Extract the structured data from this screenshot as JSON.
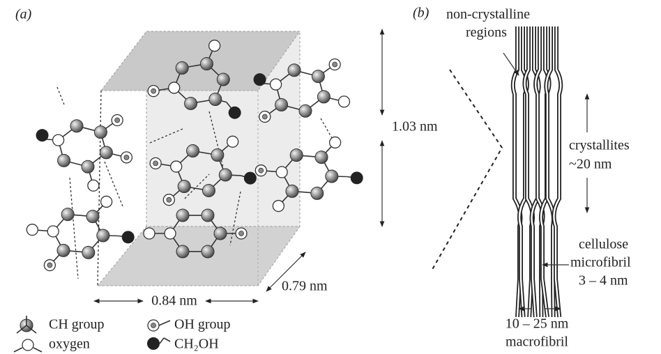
{
  "panels": {
    "a": {
      "label": "(a)",
      "dimensions": {
        "height": "1.03 nm",
        "width": "0.84 nm",
        "depth": "0.79 nm"
      },
      "legend": [
        {
          "label": "CH group"
        },
        {
          "label": "OH group"
        },
        {
          "label": "oxygen"
        },
        {
          "label": "CH₂OH"
        }
      ]
    },
    "b": {
      "label": "(b)",
      "annotations": {
        "non_crystalline": [
          "non-crystalline",
          "regions"
        ],
        "crystallites": [
          "crystallites",
          "~20 nm"
        ],
        "microfibril": [
          "cellulose",
          "microfibril",
          "3 – 4 nm"
        ],
        "macrofibril": [
          "10 – 25 nm",
          "macrofibril"
        ]
      }
    }
  }
}
